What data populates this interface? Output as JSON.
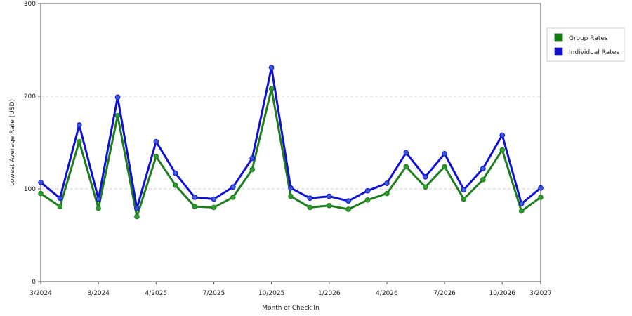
{
  "chart_data": {
    "type": "line",
    "xlabel": "Month of Check In",
    "ylabel": "Lowest Average Rate (USD)",
    "ylim": [
      0,
      300
    ],
    "y_ticks": [
      0,
      100,
      200,
      300
    ],
    "grid": true,
    "legend_position": "top-right",
    "x_tick_labels": [
      {
        "index": 0,
        "label": "3/2024"
      },
      {
        "index": 3,
        "label": "8/2024"
      },
      {
        "index": 6,
        "label": "4/2025"
      },
      {
        "index": 9,
        "label": "7/2025"
      },
      {
        "index": 12,
        "label": "10/2025"
      },
      {
        "index": 15,
        "label": "1/2026"
      },
      {
        "index": 18,
        "label": "4/2026"
      },
      {
        "index": 21,
        "label": "7/2026"
      },
      {
        "index": 24,
        "label": "10/2026"
      },
      {
        "index": 26,
        "label": "3/2027"
      }
    ],
    "point_count": 27,
    "series": [
      {
        "name": "Group Rates",
        "color": "#1e7d1e",
        "marker_color": "#2e9b2e",
        "values": [
          95,
          81,
          151,
          79,
          179,
          70,
          135,
          104,
          81,
          80,
          91,
          121,
          208,
          92,
          80,
          82,
          78,
          88,
          95,
          124,
          102,
          124,
          89,
          110,
          142,
          76,
          91
        ]
      },
      {
        "name": "Individual Rates",
        "color": "#1010d0",
        "marker_color": "#3b5bdb",
        "values": [
          107,
          90,
          169,
          89,
          199,
          79,
          151,
          117,
          91,
          89,
          102,
          133,
          231,
          101,
          90,
          92,
          87,
          98,
          106,
          139,
          113,
          138,
          99,
          122,
          158,
          84,
          101
        ]
      }
    ]
  }
}
